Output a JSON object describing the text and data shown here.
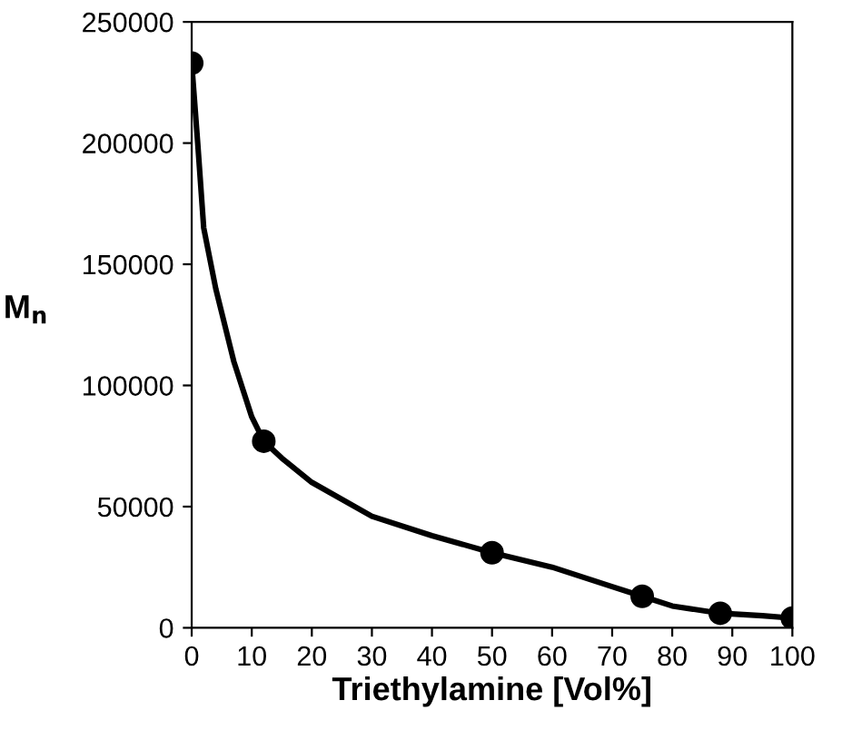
{
  "chart_data": {
    "type": "scatter",
    "xlabel": "Triethylamine [Vol%]",
    "ylabel": "M$_{n}$",
    "xlim": [
      0,
      100
    ],
    "xticks": [
      0,
      10,
      20,
      30,
      40,
      50,
      60,
      70,
      80,
      90,
      100
    ],
    "ylim": [
      0,
      250000
    ],
    "yticks": [
      0,
      50000,
      100000,
      150000,
      200000,
      250000
    ],
    "grid": false,
    "legend": false,
    "marker": "circle",
    "series": [
      {
        "color": "#000000",
        "x": [
          0,
          12,
          50,
          75,
          88,
          100
        ],
        "values": [
          233000,
          77000,
          31000,
          13000,
          6000,
          4000
        ]
      },
      {
        "type": "line",
        "color": "#000000",
        "marker": "none",
        "line_style": "solid",
        "x": [
          0,
          1,
          2,
          4,
          7,
          10,
          12,
          15,
          20,
          30,
          40,
          50,
          60,
          70,
          75,
          80,
          88,
          95,
          100
        ],
        "values": [
          233000,
          200000,
          165000,
          140000,
          110000,
          87000,
          77000,
          70000,
          60000,
          46000,
          38000,
          31000,
          25000,
          17000,
          13000,
          9000,
          6000,
          5000,
          4000
        ]
      }
    ]
  }
}
